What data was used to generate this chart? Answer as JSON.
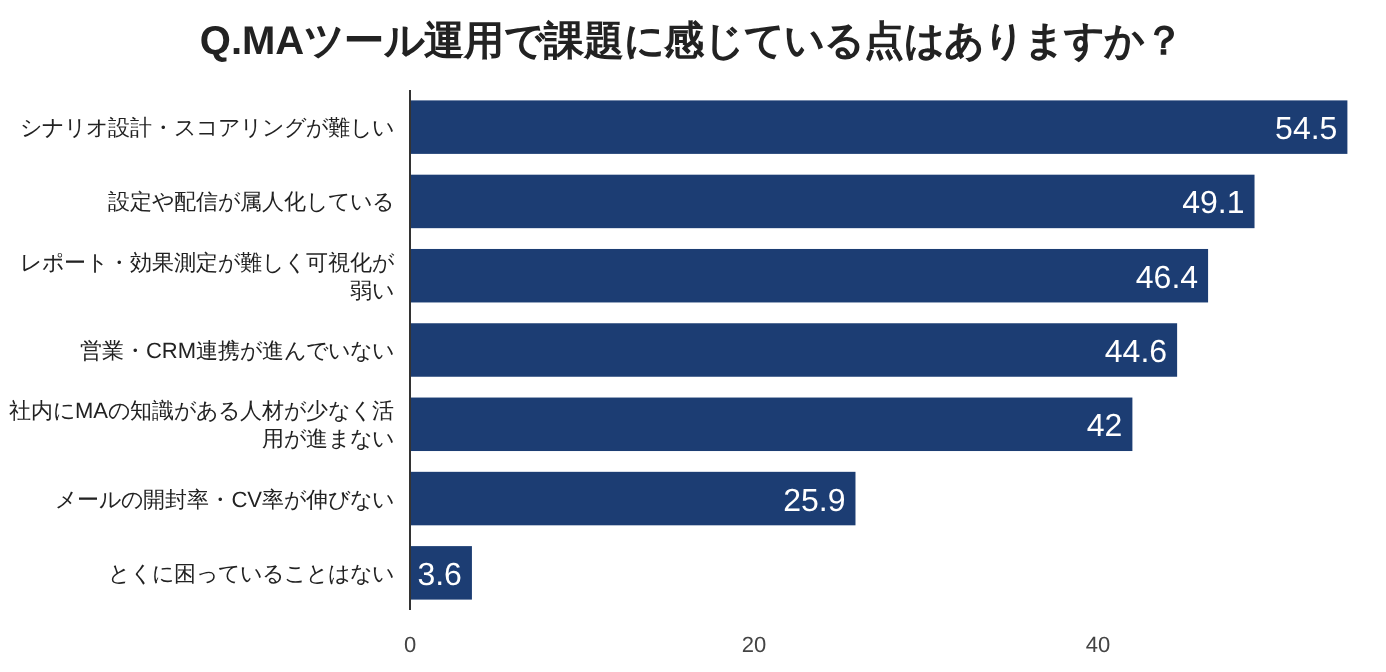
{
  "chart_data": {
    "type": "bar",
    "orientation": "horizontal",
    "title": "Q.MAツール運用で課題に感じている点はありますか？",
    "categories": [
      "シナリオ設計・スコアリングが難しい",
      "設定や配信が属人化している",
      "レポート・効果測定が難しく可視化が弱い",
      "営業・CRM連携が進んでいない",
      "社内にMAの知識がある人材が少なく活用が進まない",
      "メールの開封率・CV率が伸びない",
      "とくに困っていることはない"
    ],
    "values": [
      54.5,
      49.1,
      46.4,
      44.6,
      42,
      25.9,
      3.6
    ],
    "color": "#1c3d73",
    "xlim": [
      0,
      55
    ],
    "xticks": [
      0,
      20,
      40
    ],
    "data_labels": true,
    "grid": false
  }
}
